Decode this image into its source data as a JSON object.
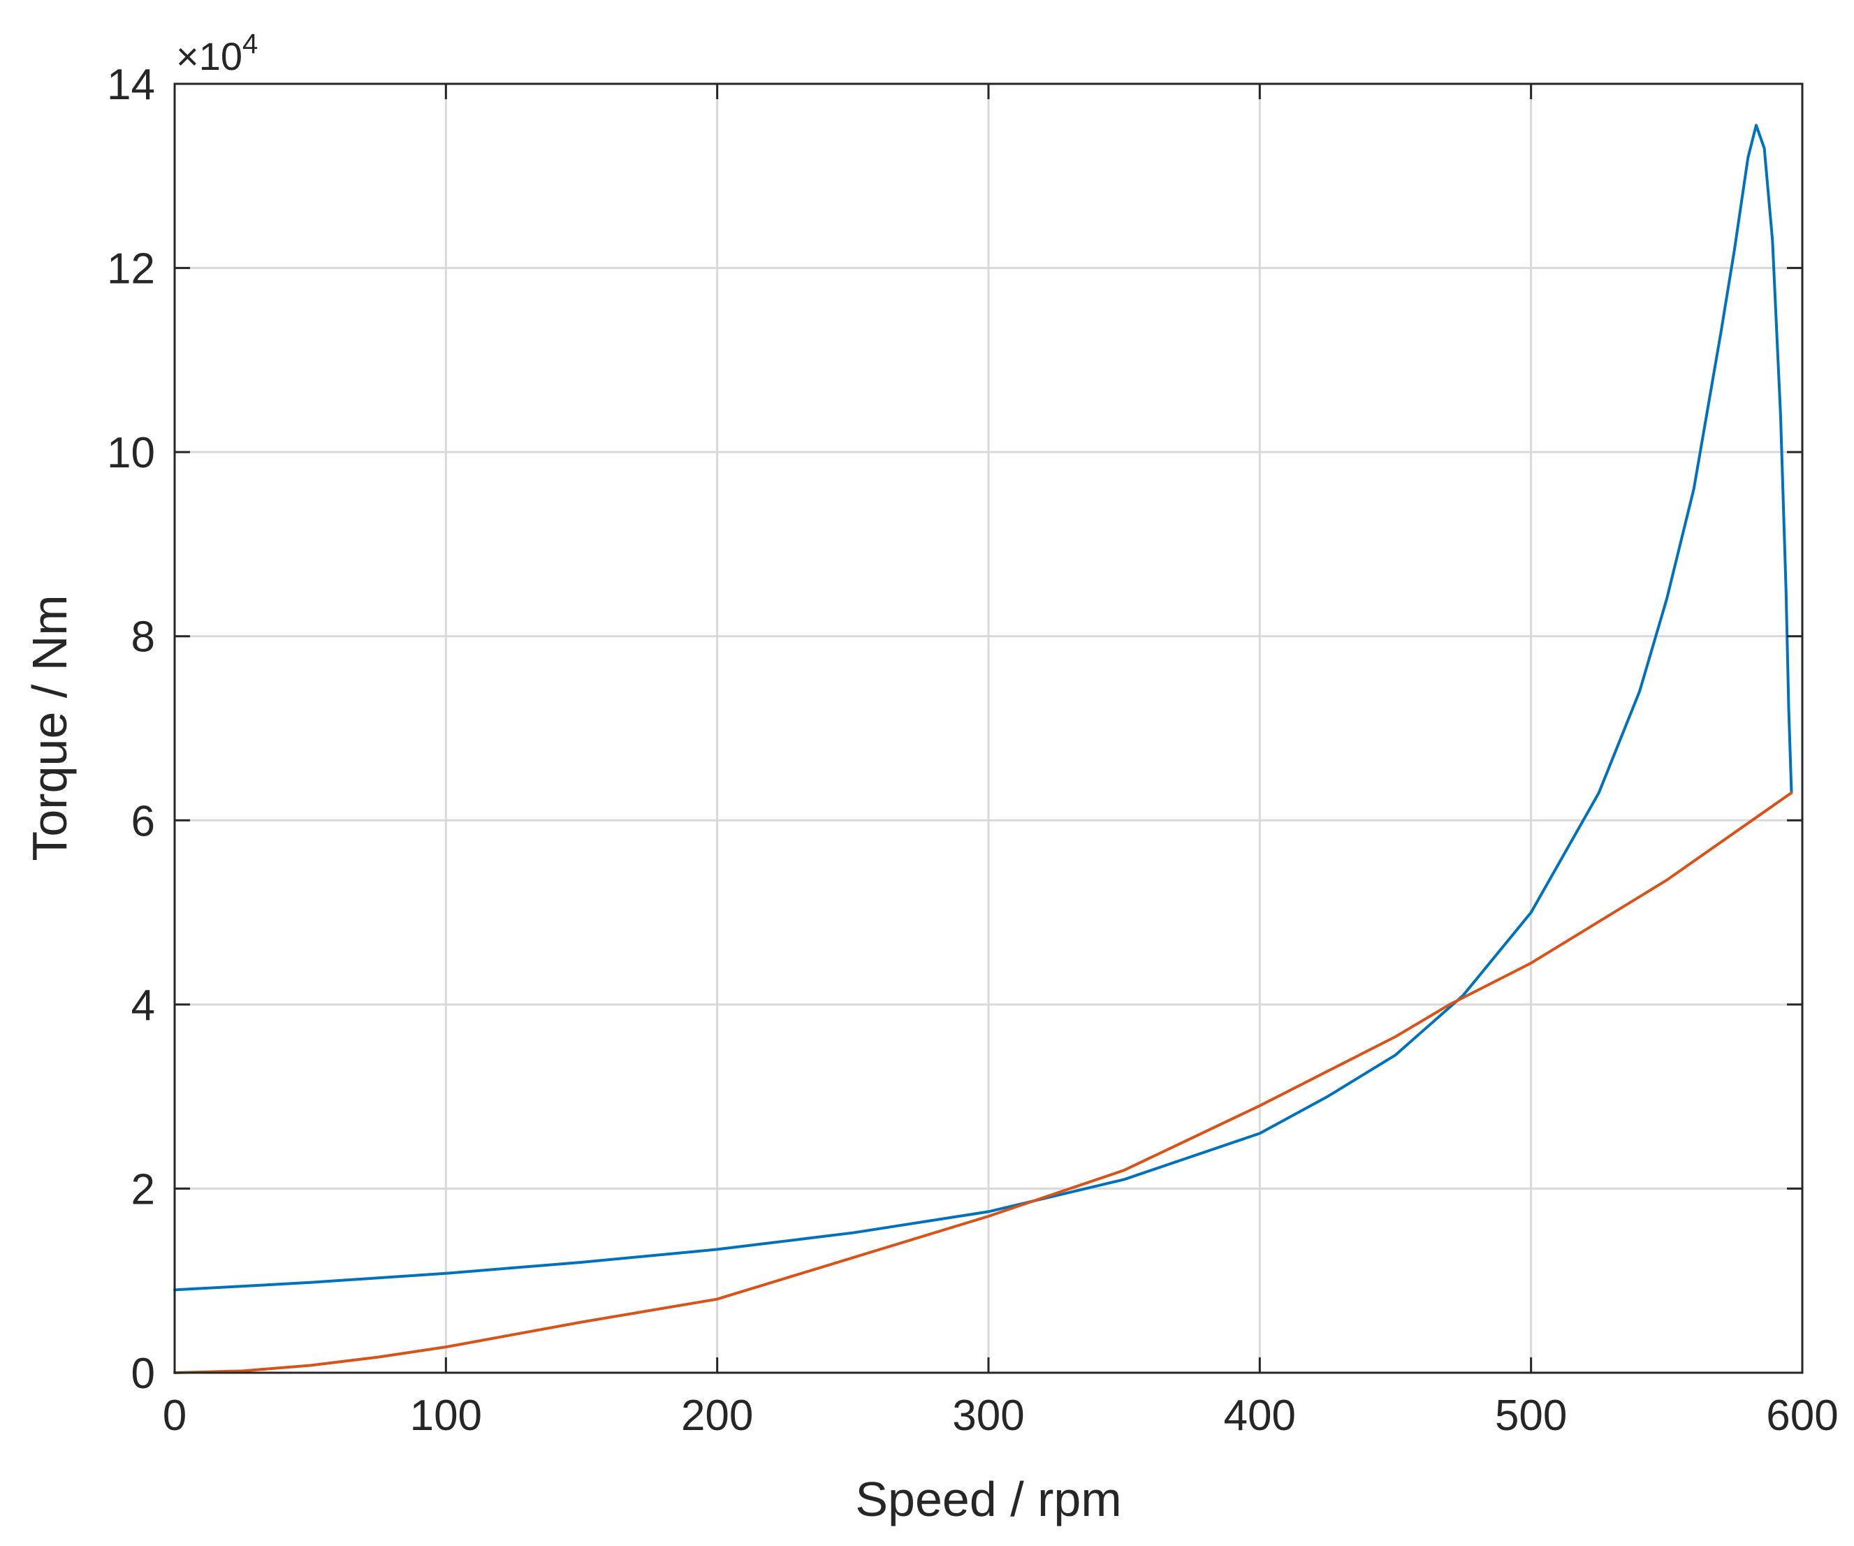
{
  "chart_data": {
    "type": "line",
    "title": "",
    "xlabel": "Speed / rpm",
    "ylabel": "Torque / Nm",
    "y_scale_multiplier": {
      "prefix": "×10",
      "exponent": "4"
    },
    "xlim": [
      0,
      600
    ],
    "ylim": [
      0,
      140000
    ],
    "xticks": [
      0,
      100,
      200,
      300,
      400,
      500,
      600
    ],
    "xtick_labels": [
      "0",
      "100",
      "200",
      "300",
      "400",
      "500",
      "600"
    ],
    "yticks": [
      0,
      20000,
      40000,
      60000,
      80000,
      100000,
      120000,
      140000
    ],
    "ytick_labels": [
      "0",
      "2",
      "4",
      "6",
      "8",
      "10",
      "12",
      "14"
    ],
    "grid": true,
    "legend": null,
    "series": [
      {
        "color": "#0072bd",
        "x": [
          0,
          50,
          100,
          150,
          200,
          250,
          300,
          350,
          400,
          425,
          450,
          475,
          500,
          525,
          540,
          550,
          560,
          570,
          575,
          580,
          583,
          586,
          589,
          592,
          594,
          595,
          596
        ],
        "y": [
          9000,
          9800,
          10800,
          12000,
          13400,
          15200,
          17500,
          21000,
          26000,
          30000,
          34500,
          41000,
          50000,
          63000,
          74000,
          84000,
          96000,
          113000,
          122000,
          132000,
          135500,
          133000,
          123000,
          104000,
          85000,
          72000,
          63000
        ]
      },
      {
        "color": "#d95319",
        "x": [
          0,
          25,
          50,
          75,
          100,
          150,
          200,
          250,
          300,
          325,
          350,
          400,
          450,
          470,
          500,
          550,
          596
        ],
        "y": [
          0,
          200,
          800,
          1700,
          2800,
          5500,
          8000,
          12500,
          17000,
          19500,
          22000,
          29000,
          36500,
          40000,
          44500,
          53500,
          63000
        ]
      }
    ]
  }
}
